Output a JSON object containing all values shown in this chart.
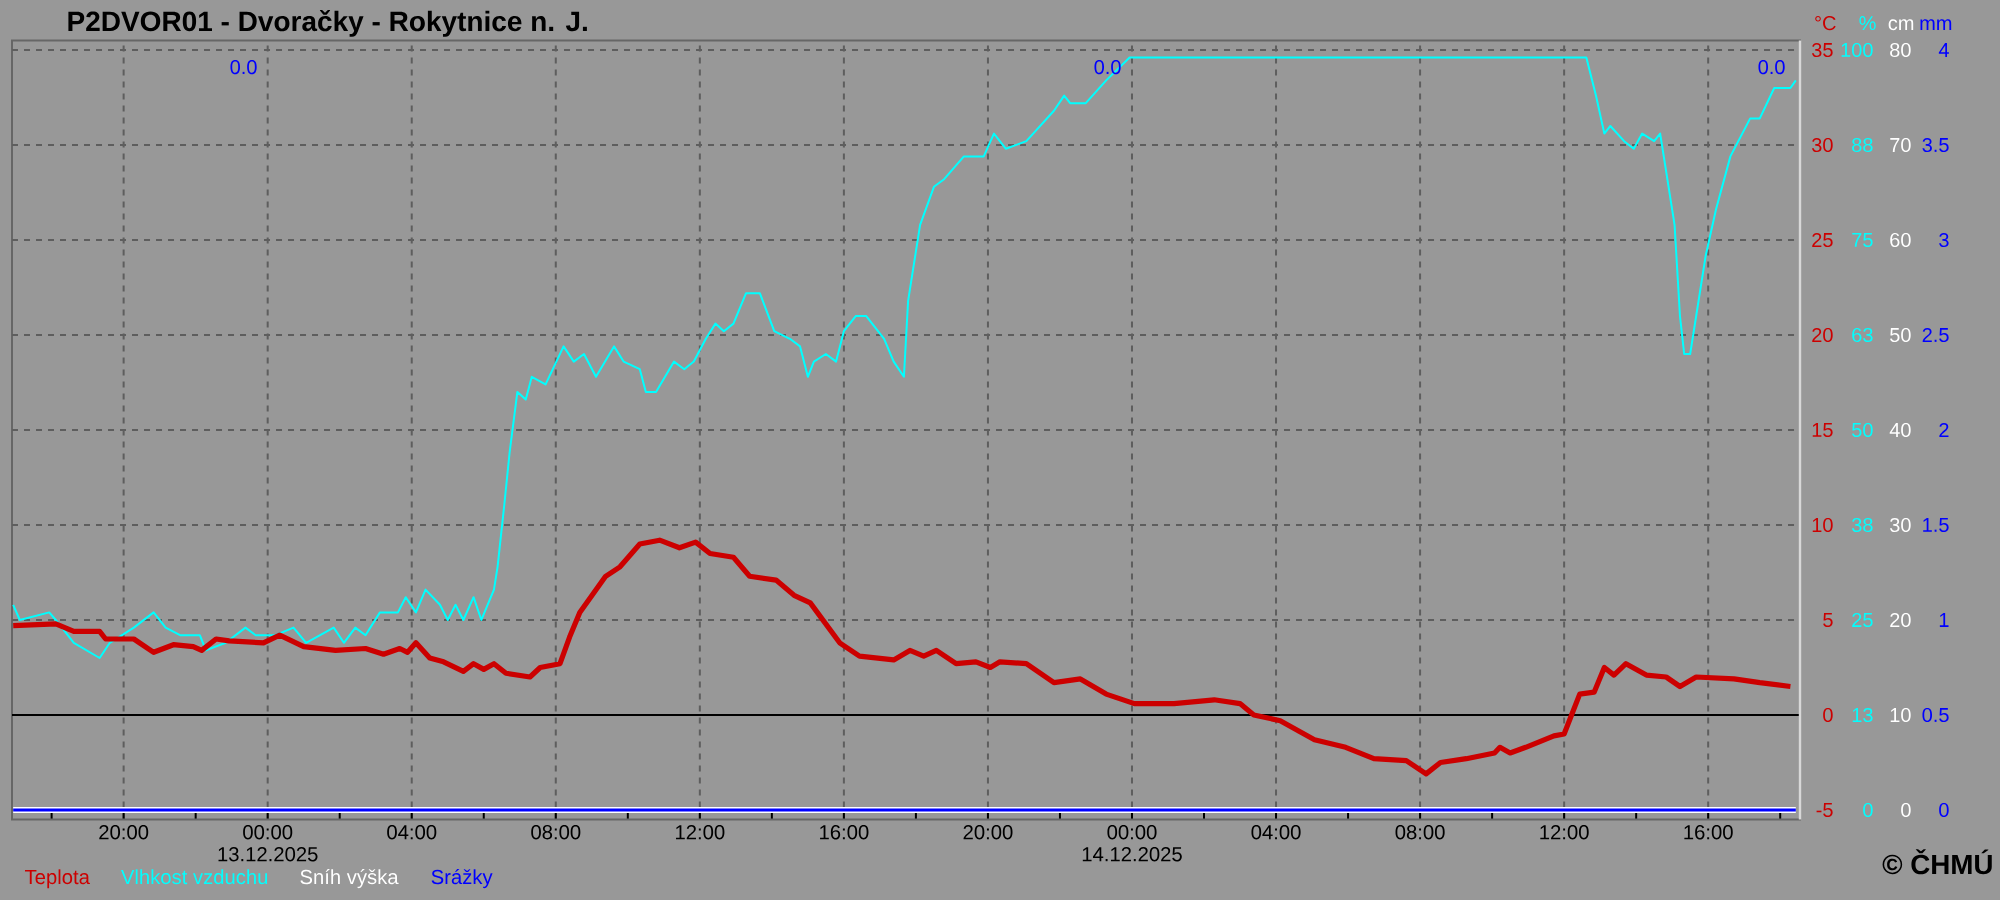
{
  "chart_data": [
    {
      "type": "line",
      "title": "P2DVOR01 - Dvoračky - Rokytnice n. J.",
      "ylabel": "°C",
      "y2label": "%",
      "y3label": "cm",
      "xlim": [
        "2025-12-12T16:54",
        "2025-12-14T18:33"
      ],
      "xticks": [
        {
          "value": "2025-12-12T18:00",
          "label": null
        },
        {
          "value": "2025-12-12T20:00",
          "label": "20:00"
        },
        {
          "value": "2025-12-12T22:00",
          "label": null
        },
        {
          "value": "2025-12-13T00:00",
          "label": "00:00 13.12.2025"
        },
        {
          "value": "2025-12-13T02:00",
          "label": null
        },
        {
          "value": "2025-12-13T04:00",
          "label": "04:00"
        },
        {
          "value": "2025-12-13T06:00",
          "label": null
        },
        {
          "value": "2025-12-13T08:00",
          "label": "08:00"
        },
        {
          "value": "2025-12-13T10:00",
          "label": null
        },
        {
          "value": "2025-12-13T12:00",
          "label": "12:00"
        },
        {
          "value": "2025-12-13T14:00",
          "label": null
        },
        {
          "value": "2025-12-13T16:00",
          "label": "16:00"
        },
        {
          "value": "2025-12-13T18:00",
          "label": null
        },
        {
          "value": "2025-12-13T20:00",
          "label": "20:00"
        },
        {
          "value": "2025-12-13T22:00",
          "label": null
        },
        {
          "value": "2025-12-14T00:00",
          "label": "00:00 14.12.2025"
        },
        {
          "value": "2025-12-14T02:00",
          "label": null
        },
        {
          "value": "2025-12-14T04:00",
          "label": "04:00"
        },
        {
          "value": "2025-12-14T06:00",
          "label": null
        },
        {
          "value": "2025-12-14T08:00",
          "label": "08:00"
        },
        {
          "value": "2025-12-14T10:00",
          "label": null
        },
        {
          "value": "2025-12-14T12:00",
          "label": "12:00"
        },
        {
          "value": "2025-12-14T14:00",
          "label": null
        },
        {
          "value": "2025-12-14T16:00",
          "label": "16:00"
        },
        {
          "value": "2025-12-14T18:00",
          "label": null
        }
      ],
      "ylim": [
        -5.5,
        35.5
      ],
      "yticks": [
        -5,
        0,
        5,
        10,
        15,
        20,
        25,
        30,
        35
      ],
      "y2lim": [
        -1.25,
        101.25
      ],
      "y2ticks": [
        0,
        {
          "value": 12.5,
          "label": "13"
        },
        25,
        {
          "value": 37.5,
          "label": "38"
        },
        50,
        {
          "value": 62.5,
          "label": "63"
        },
        75,
        {
          "value": 87.5,
          "label": "88"
        },
        100
      ],
      "y3lim": [
        -1,
        81
      ],
      "y3ticks": [
        0,
        10,
        20,
        30,
        40,
        50,
        60,
        70,
        80
      ],
      "grid": true,
      "legend": "bottom left",
      "ref_lines": [
        {
          "axis": "y",
          "value": 0,
          "color": "#000000"
        }
      ],
      "annotations": [
        "© ČHMÚ"
      ],
      "series": [
        {
          "name": "Teplota",
          "color": "#cc0000",
          "x": [
            "2025-12-12T16:56",
            "2025-12-12T18:07",
            "2025-12-12T18:37",
            "2025-12-12T19:20",
            "2025-12-12T19:30",
            "2025-12-12T20:17",
            "2025-12-12T20:50",
            "2025-12-12T21:23",
            "2025-12-12T21:56",
            "2025-12-12T22:10",
            "2025-12-12T22:34",
            "2025-12-12T22:56",
            "2025-12-12T23:53",
            "2025-12-13T00:20",
            "2025-12-13T01:00",
            "2025-12-13T01:53",
            "2025-12-13T02:43",
            "2025-12-13T03:13",
            "2025-12-13T03:40",
            "2025-12-13T03:53",
            "2025-12-13T04:07",
            "2025-12-13T04:30",
            "2025-12-13T04:53",
            "2025-12-13T05:26",
            "2025-12-13T05:43",
            "2025-12-13T06:00",
            "2025-12-13T06:17",
            "2025-12-13T06:37",
            "2025-12-13T07:17",
            "2025-12-13T07:34",
            "2025-12-13T08:07",
            "2025-12-13T08:23",
            "2025-12-13T08:40",
            "2025-12-13T09:23",
            "2025-12-13T09:47",
            "2025-12-13T10:20",
            "2025-12-13T10:53",
            "2025-12-13T11:26",
            "2025-12-13T11:53",
            "2025-12-13T12:17",
            "2025-12-13T12:56",
            "2025-12-13T13:23",
            "2025-12-13T14:07",
            "2025-12-13T14:37",
            "2025-12-13T15:04",
            "2025-12-13T15:53",
            "2025-12-13T16:26",
            "2025-12-13T17:23",
            "2025-12-13T17:50",
            "2025-12-13T18:13",
            "2025-12-13T18:34",
            "2025-12-13T19:07",
            "2025-12-13T19:40",
            "2025-12-13T20:04",
            "2025-12-13T20:20",
            "2025-12-13T21:04",
            "2025-12-13T21:50",
            "2025-12-13T22:34",
            "2025-12-13T23:17",
            "2025-12-14T00:04",
            "2025-12-14T01:10",
            "2025-12-14T02:17",
            "2025-12-14T03:00",
            "2025-12-14T03:23",
            "2025-12-14T04:07",
            "2025-12-14T05:04",
            "2025-12-14T05:56",
            "2025-12-14T06:43",
            "2025-12-14T07:37",
            "2025-12-14T08:10",
            "2025-12-14T08:34",
            "2025-12-14T09:17",
            "2025-12-14T10:04",
            "2025-12-14T10:13",
            "2025-12-14T10:30",
            "2025-12-14T10:56",
            "2025-12-14T11:43",
            "2025-12-14T12:00",
            "2025-12-14T12:26",
            "2025-12-14T12:50",
            "2025-12-14T13:07",
            "2025-12-14T13:23",
            "2025-12-14T13:43",
            "2025-12-14T14:17",
            "2025-12-14T14:50",
            "2025-12-14T15:13",
            "2025-12-14T15:40",
            "2025-12-14T16:43",
            "2025-12-14T17:26",
            "2025-12-14T18:17"
          ],
          "values": [
            4.7,
            4.8,
            4.4,
            4.4,
            4.0,
            4.0,
            3.3,
            3.7,
            3.6,
            3.4,
            4.0,
            3.9,
            3.8,
            4.2,
            3.6,
            3.4,
            3.5,
            3.2,
            3.5,
            3.3,
            3.8,
            3.0,
            2.8,
            2.3,
            2.7,
            2.4,
            2.7,
            2.2,
            2.0,
            2.5,
            2.7,
            4.1,
            5.4,
            7.3,
            7.8,
            9.0,
            9.2,
            8.8,
            9.1,
            8.5,
            8.3,
            7.3,
            7.1,
            6.3,
            5.9,
            3.8,
            3.1,
            2.9,
            3.4,
            3.1,
            3.4,
            2.7,
            2.8,
            2.5,
            2.8,
            2.7,
            1.7,
            1.9,
            1.1,
            0.6,
            0.6,
            0.8,
            0.6,
            0.0,
            -0.3,
            -1.3,
            -1.7,
            -2.3,
            -2.4,
            -3.1,
            -2.5,
            -2.3,
            -2.0,
            -1.7,
            -2.0,
            -1.7,
            -1.1,
            -1.0,
            1.1,
            1.2,
            2.5,
            2.1,
            2.7,
            2.1,
            2.0,
            1.5,
            2.0,
            1.9,
            1.7,
            1.5
          ]
        },
        {
          "name": "Vlhkost vzduchu",
          "color": "#00ffff",
          "axis": "y2",
          "x": [
            "2025-12-12T16:56",
            "2025-12-12T17:07",
            "2025-12-12T17:56",
            "2025-12-12T18:07",
            "2025-12-12T18:37",
            "2025-12-12T19:20",
            "2025-12-12T19:37",
            "2025-12-12T20:17",
            "2025-12-12T20:50",
            "2025-12-12T21:10",
            "2025-12-12T21:34",
            "2025-12-12T22:07",
            "2025-12-12T22:17",
            "2025-12-12T22:50",
            "2025-12-12T23:23",
            "2025-12-12T23:40",
            "2025-12-12T23:56",
            "2025-12-13T00:13",
            "2025-12-13T00:43",
            "2025-12-13T01:04",
            "2025-12-13T01:50",
            "2025-12-13T02:07",
            "2025-12-13T02:26",
            "2025-12-13T02:43",
            "2025-12-13T03:07",
            "2025-12-13T03:37",
            "2025-12-13T03:50",
            "2025-12-13T04:07",
            "2025-12-13T04:23",
            "2025-12-13T04:47",
            "2025-12-13T05:00",
            "2025-12-13T05:13",
            "2025-12-13T05:26",
            "2025-12-13T05:43",
            "2025-12-13T05:56",
            "2025-12-13T06:17",
            "2025-12-13T06:23",
            "2025-12-13T06:34",
            "2025-12-13T06:43",
            "2025-12-13T06:56",
            "2025-12-13T07:10",
            "2025-12-13T07:20",
            "2025-12-13T07:43",
            "2025-12-13T08:13",
            "2025-12-13T08:30",
            "2025-12-13T08:47",
            "2025-12-13T09:07",
            "2025-12-13T09:37",
            "2025-12-13T09:53",
            "2025-12-13T10:20",
            "2025-12-13T10:30",
            "2025-12-13T10:47",
            "2025-12-13T11:17",
            "2025-12-13T11:34",
            "2025-12-13T11:50",
            "2025-12-13T12:10",
            "2025-12-13T12:26",
            "2025-12-13T12:40",
            "2025-12-13T12:56",
            "2025-12-13T13:17",
            "2025-12-13T13:40",
            "2025-12-13T14:04",
            "2025-12-13T14:30",
            "2025-12-13T14:47",
            "2025-12-13T15:00",
            "2025-12-13T15:10",
            "2025-12-13T15:30",
            "2025-12-13T15:47",
            "2025-12-13T16:00",
            "2025-12-13T16:20",
            "2025-12-13T16:37",
            "2025-12-13T17:07",
            "2025-12-13T17:23",
            "2025-12-13T17:40",
            "2025-12-13T17:47",
            "2025-12-13T18:07",
            "2025-12-13T18:30",
            "2025-12-13T18:47",
            "2025-12-13T19:20",
            "2025-12-13T19:53",
            "2025-12-13T20:10",
            "2025-12-13T20:30",
            "2025-12-13T21:04",
            "2025-12-13T21:50",
            "2025-12-13T22:07",
            "2025-12-13T22:17",
            "2025-12-13T22:43",
            "2025-12-13T23:17",
            "2025-12-13T23:56",
            "2025-12-14T12:37",
            "2025-12-14T12:53",
            "2025-12-14T13:07",
            "2025-12-14T13:17",
            "2025-12-14T13:40",
            "2025-12-14T13:56",
            "2025-12-14T14:10",
            "2025-12-14T14:30",
            "2025-12-14T14:40",
            "2025-12-14T14:50",
            "2025-12-14T15:04",
            "2025-12-14T15:13",
            "2025-12-14T15:20",
            "2025-12-14T15:30",
            "2025-12-14T15:40",
            "2025-12-14T15:56",
            "2025-12-14T16:13",
            "2025-12-14T16:37",
            "2025-12-14T17:10",
            "2025-12-14T17:26",
            "2025-12-14T17:50",
            "2025-12-14T18:17",
            "2025-12-14T18:26"
          ],
          "values": [
            27,
            25,
            26,
            25,
            22,
            20,
            22,
            24,
            26,
            24,
            23,
            23,
            21,
            22,
            24,
            23,
            23,
            23,
            24,
            22,
            24,
            22,
            24,
            23,
            26,
            26,
            28,
            26,
            29,
            27,
            25,
            27,
            25,
            28,
            25,
            29,
            32,
            40,
            47,
            55,
            54,
            57,
            56,
            61,
            59,
            60,
            57,
            61,
            59,
            58,
            55,
            55,
            59,
            58,
            59,
            62,
            64,
            63,
            64,
            68,
            68,
            63,
            62,
            61,
            57,
            59,
            60,
            59,
            63,
            65,
            65,
            62,
            59,
            57,
            67,
            77,
            82,
            83,
            86,
            86,
            89,
            87,
            88,
            92,
            94,
            93,
            93,
            96,
            99,
            99,
            94,
            89,
            90,
            88,
            87,
            89,
            88,
            89,
            84,
            77,
            65,
            60,
            60,
            65,
            73,
            79,
            86,
            91,
            91,
            95,
            95,
            96
          ]
        },
        {
          "name": "Sníh výška",
          "color": "#ffffff",
          "axis": "y3",
          "x": [
            "2025-12-12T16:56",
            "2025-12-14T18:26"
          ],
          "values": [
            0,
            0
          ]
        }
      ]
    },
    {
      "type": "line",
      "ylabel": "mm",
      "xlim": [
        "2025-12-12T16:54",
        "2025-12-14T18:33"
      ],
      "ylim": [
        -0.05,
        4.05
      ],
      "yticks": [
        0,
        0.5,
        1,
        1.5,
        2,
        2.5,
        3,
        3.5,
        4
      ],
      "tick_labels": "y",
      "legend": "bottom left",
      "annotations": [
        "0.0",
        "0.0",
        "0.0"
      ],
      "series": [
        {
          "name": "Srážky",
          "color": "#0000ff",
          "x": [
            "2025-12-12T16:56",
            "2025-12-14T18:26"
          ],
          "values": [
            0,
            0
          ]
        }
      ]
    }
  ]
}
